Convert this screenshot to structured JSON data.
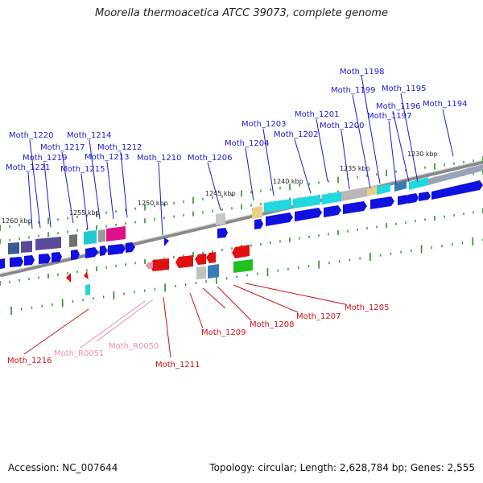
{
  "title": "Moorella thermoacetica ATCC 39073, complete genome",
  "footer": {
    "accession": "Accession: NC_007644",
    "summary": "Topology: circular; Length: 2,628,784 bp; Genes: 2,555"
  },
  "colors": {
    "backbone": "#8c8c8c",
    "tick": "#2e8b2e",
    "label_blue": "#1a1acc",
    "label_red": "#cc1111",
    "label_pink": "#e98fb8",
    "gene_blue": "#1010e0",
    "gene_red": "#e01010",
    "cyan": "#20d8e0",
    "grey": "#b8b8b8",
    "tan": "#e6d08a",
    "purple": "#5a4a9a",
    "magenta": "#e0108a",
    "green": "#20c020",
    "steel": "#3a7ab8"
  },
  "scale_labels": [
    "1230 kbp",
    "1235 kbp",
    "1240 kbp",
    "1245 kbp",
    "1250 kbp",
    "1255 kbp",
    "1260 kbp"
  ],
  "top_labels": [
    "Moth_1198",
    "Moth_1199",
    "Moth_1195",
    "Moth_1196",
    "Moth_1194",
    "Moth_1201",
    "Moth_1197",
    "Moth_1200",
    "Moth_1203",
    "Moth_1202",
    "Moth_1220",
    "Moth_1214",
    "Moth_1204",
    "Moth_1217",
    "Moth_1212",
    "Moth_1219",
    "Moth_1213",
    "Moth_1210",
    "Moth_1206",
    "Moth_1221",
    "Moth_1215"
  ],
  "bottom_labels": [
    "Moth_1205",
    "Moth_1207",
    "Moth_1208",
    "Moth_1209",
    "Moth_1211",
    "Moth_R0050",
    "Moth_R0051",
    "Moth_1216"
  ]
}
